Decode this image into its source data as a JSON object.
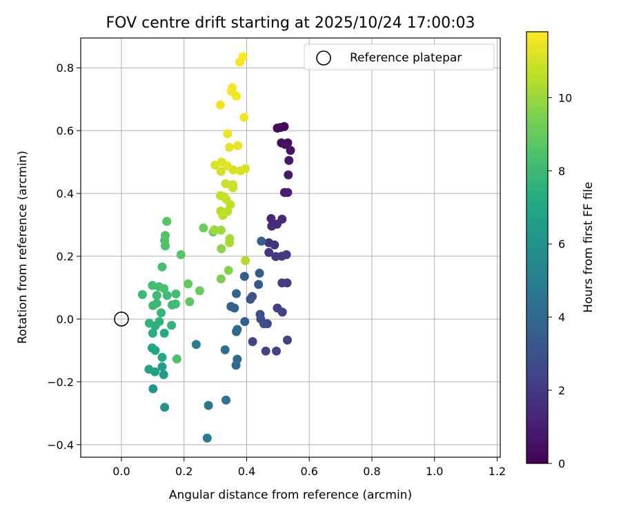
{
  "chart_data": {
    "type": "scatter",
    "title": "FOV centre drift starting at 2025/10/24 17:00:03",
    "xlabel": "Angular distance from reference (arcmin)",
    "ylabel": "Rotation from reference (arcmin)",
    "xlim": [
      -0.13,
      1.21
    ],
    "ylim": [
      -0.44,
      0.895
    ],
    "xticks": [
      0.0,
      0.2,
      0.4,
      0.6,
      0.8,
      1.0,
      1.2
    ],
    "xtick_labels": [
      "0.0",
      "0.2",
      "0.4",
      "0.6",
      "0.8",
      "1.0",
      "1.2"
    ],
    "yticks": [
      -0.4,
      -0.2,
      0.0,
      0.2,
      0.4,
      0.6,
      0.8
    ],
    "ytick_labels": [
      "−0.4",
      "−0.2",
      "0.0",
      "0.2",
      "0.4",
      "0.6",
      "0.8"
    ],
    "grid": true,
    "legend": {
      "position": "top-right",
      "entries": [
        "Reference platepar"
      ]
    },
    "reference_point": {
      "x": 0.0,
      "y": 0.0,
      "label": "Reference platepar"
    },
    "colorbar": {
      "label": "Hours from first FF file",
      "range": [
        0,
        11.8
      ],
      "ticks": [
        0,
        2,
        4,
        6,
        8,
        10
      ],
      "tick_labels": [
        "0",
        "2",
        "4",
        "6",
        "8",
        "10"
      ],
      "colormap": "viridis"
    },
    "points": [
      {
        "x": 0.508,
        "y": 0.61,
        "c": 0.1
      },
      {
        "x": 0.52,
        "y": 0.613,
        "c": 0.2
      },
      {
        "x": 0.498,
        "y": 0.608,
        "c": 0.3
      },
      {
        "x": 0.511,
        "y": 0.561,
        "c": 0.4
      },
      {
        "x": 0.531,
        "y": 0.561,
        "c": 0.5
      },
      {
        "x": 0.523,
        "y": 0.556,
        "c": 0.55
      },
      {
        "x": 0.54,
        "y": 0.537,
        "c": 0.6
      },
      {
        "x": 0.535,
        "y": 0.505,
        "c": 0.7
      },
      {
        "x": 0.533,
        "y": 0.459,
        "c": 0.8
      },
      {
        "x": 0.521,
        "y": 0.403,
        "c": 0.9
      },
      {
        "x": 0.531,
        "y": 0.403,
        "c": 1.0
      },
      {
        "x": 0.478,
        "y": 0.32,
        "c": 1.2
      },
      {
        "x": 0.513,
        "y": 0.318,
        "c": 1.3
      },
      {
        "x": 0.48,
        "y": 0.296,
        "c": 1.4
      },
      {
        "x": 0.497,
        "y": 0.302,
        "c": 1.5
      },
      {
        "x": 0.471,
        "y": 0.243,
        "c": 1.6
      },
      {
        "x": 0.489,
        "y": 0.236,
        "c": 1.7
      },
      {
        "x": 0.471,
        "y": 0.212,
        "c": 1.8
      },
      {
        "x": 0.493,
        "y": 0.199,
        "c": 1.9
      },
      {
        "x": 0.512,
        "y": 0.2,
        "c": 2.0
      },
      {
        "x": 0.527,
        "y": 0.205,
        "c": 2.0
      },
      {
        "x": 0.513,
        "y": 0.115,
        "c": 2.1
      },
      {
        "x": 0.529,
        "y": 0.115,
        "c": 2.15
      },
      {
        "x": 0.498,
        "y": 0.035,
        "c": 2.2
      },
      {
        "x": 0.514,
        "y": 0.022,
        "c": 2.25
      },
      {
        "x": 0.53,
        "y": -0.067,
        "c": 2.3
      },
      {
        "x": 0.495,
        "y": -0.102,
        "c": 2.35
      },
      {
        "x": 0.461,
        "y": -0.102,
        "c": 2.4
      },
      {
        "x": 0.419,
        "y": -0.072,
        "c": 2.5
      },
      {
        "x": 0.466,
        "y": -0.015,
        "c": 2.6
      },
      {
        "x": 0.455,
        "y": -0.015,
        "c": 2.7
      },
      {
        "x": 0.445,
        "y": 0.0,
        "c": 2.8
      },
      {
        "x": 0.443,
        "y": 0.015,
        "c": 2.9
      },
      {
        "x": 0.418,
        "y": 0.072,
        "c": 3.0
      },
      {
        "x": 0.412,
        "y": 0.063,
        "c": 3.1
      },
      {
        "x": 0.438,
        "y": 0.11,
        "c": 3.2
      },
      {
        "x": 0.441,
        "y": 0.146,
        "c": 3.3
      },
      {
        "x": 0.393,
        "y": 0.136,
        "c": 3.4
      },
      {
        "x": 0.447,
        "y": 0.248,
        "c": 3.45
      },
      {
        "x": 0.394,
        "y": -0.008,
        "c": 3.5
      },
      {
        "x": 0.361,
        "y": 0.035,
        "c": 3.6
      },
      {
        "x": 0.35,
        "y": 0.04,
        "c": 3.7
      },
      {
        "x": 0.367,
        "y": 0.081,
        "c": 3.8
      },
      {
        "x": 0.37,
        "y": -0.033,
        "c": 3.9
      },
      {
        "x": 0.367,
        "y": -0.04,
        "c": 4.0
      },
      {
        "x": 0.37,
        "y": -0.128,
        "c": 4.1
      },
      {
        "x": 0.366,
        "y": -0.147,
        "c": 4.2
      },
      {
        "x": 0.331,
        "y": -0.098,
        "c": 4.4
      },
      {
        "x": 0.334,
        "y": -0.258,
        "c": 4.5
      },
      {
        "x": 0.278,
        "y": -0.275,
        "c": 4.7
      },
      {
        "x": 0.274,
        "y": -0.379,
        "c": 4.8
      },
      {
        "x": 0.239,
        "y": -0.081,
        "c": 5.0
      },
      {
        "x": 0.138,
        "y": -0.281,
        "c": 6.0
      },
      {
        "x": 0.101,
        "y": -0.222,
        "c": 6.2
      },
      {
        "x": 0.135,
        "y": -0.177,
        "c": 6.4
      },
      {
        "x": 0.13,
        "y": -0.152,
        "c": 6.5
      },
      {
        "x": 0.107,
        "y": -0.168,
        "c": 6.6
      },
      {
        "x": 0.088,
        "y": -0.16,
        "c": 6.8
      },
      {
        "x": 0.098,
        "y": -0.092,
        "c": 6.9
      },
      {
        "x": 0.108,
        "y": -0.1,
        "c": 7.0
      },
      {
        "x": 0.13,
        "y": -0.122,
        "c": 7.1
      },
      {
        "x": 0.137,
        "y": -0.045,
        "c": 7.2
      },
      {
        "x": 0.1,
        "y": -0.045,
        "c": 7.3
      },
      {
        "x": 0.108,
        "y": -0.022,
        "c": 7.4
      },
      {
        "x": 0.121,
        "y": -0.008,
        "c": 7.5
      },
      {
        "x": 0.089,
        "y": -0.013,
        "c": 7.6
      },
      {
        "x": 0.16,
        "y": -0.02,
        "c": 7.7
      },
      {
        "x": 0.127,
        "y": 0.02,
        "c": 7.75
      },
      {
        "x": 0.101,
        "y": 0.043,
        "c": 7.8
      },
      {
        "x": 0.113,
        "y": 0.05,
        "c": 7.85
      },
      {
        "x": 0.067,
        "y": 0.078,
        "c": 7.9
      },
      {
        "x": 0.113,
        "y": 0.075,
        "c": 7.95
      },
      {
        "x": 0.162,
        "y": 0.045,
        "c": 8.0
      },
      {
        "x": 0.173,
        "y": 0.048,
        "c": 8.05
      },
      {
        "x": 0.146,
        "y": 0.075,
        "c": 8.1
      },
      {
        "x": 0.174,
        "y": 0.08,
        "c": 8.15
      },
      {
        "x": 0.099,
        "y": 0.107,
        "c": 8.2
      },
      {
        "x": 0.12,
        "y": 0.103,
        "c": 8.25
      },
      {
        "x": 0.136,
        "y": 0.097,
        "c": 8.3
      },
      {
        "x": 0.13,
        "y": 0.166,
        "c": 8.35
      },
      {
        "x": 0.177,
        "y": -0.127,
        "c": 8.4
      },
      {
        "x": 0.14,
        "y": 0.233,
        "c": 8.45
      },
      {
        "x": 0.138,
        "y": 0.25,
        "c": 8.5
      },
      {
        "x": 0.14,
        "y": 0.266,
        "c": 8.55
      },
      {
        "x": 0.145,
        "y": 0.311,
        "c": 8.6
      },
      {
        "x": 0.19,
        "y": 0.205,
        "c": 8.7
      },
      {
        "x": 0.218,
        "y": 0.055,
        "c": 8.8
      },
      {
        "x": 0.213,
        "y": 0.112,
        "c": 8.9
      },
      {
        "x": 0.25,
        "y": 0.09,
        "c": 9.0
      },
      {
        "x": 0.262,
        "y": 0.29,
        "c": 9.1
      },
      {
        "x": 0.293,
        "y": 0.277,
        "c": 9.2
      },
      {
        "x": 0.318,
        "y": 0.128,
        "c": 9.4
      },
      {
        "x": 0.342,
        "y": 0.155,
        "c": 9.6
      },
      {
        "x": 0.319,
        "y": 0.224,
        "c": 9.8
      },
      {
        "x": 0.318,
        "y": 0.283,
        "c": 10.0
      },
      {
        "x": 0.297,
        "y": 0.284,
        "c": 10.1
      },
      {
        "x": 0.345,
        "y": 0.243,
        "c": 10.2
      },
      {
        "x": 0.346,
        "y": 0.256,
        "c": 10.3
      },
      {
        "x": 0.396,
        "y": 0.186,
        "c": 10.4
      },
      {
        "x": 0.317,
        "y": 0.344,
        "c": 10.5
      },
      {
        "x": 0.339,
        "y": 0.343,
        "c": 10.55
      },
      {
        "x": 0.324,
        "y": 0.33,
        "c": 10.6
      },
      {
        "x": 0.348,
        "y": 0.364,
        "c": 10.65
      },
      {
        "x": 0.316,
        "y": 0.393,
        "c": 10.7
      },
      {
        "x": 0.335,
        "y": 0.381,
        "c": 10.75
      },
      {
        "x": 0.327,
        "y": 0.39,
        "c": 10.8
      },
      {
        "x": 0.333,
        "y": 0.431,
        "c": 10.85
      },
      {
        "x": 0.356,
        "y": 0.418,
        "c": 10.9
      },
      {
        "x": 0.356,
        "y": 0.428,
        "c": 10.95
      },
      {
        "x": 0.318,
        "y": 0.47,
        "c": 11.0
      },
      {
        "x": 0.357,
        "y": 0.475,
        "c": 11.05
      },
      {
        "x": 0.38,
        "y": 0.472,
        "c": 11.1
      },
      {
        "x": 0.396,
        "y": 0.479,
        "c": 11.15
      },
      {
        "x": 0.299,
        "y": 0.49,
        "c": 11.2
      },
      {
        "x": 0.32,
        "y": 0.5,
        "c": 11.25
      },
      {
        "x": 0.338,
        "y": 0.488,
        "c": 11.3
      },
      {
        "x": 0.345,
        "y": 0.547,
        "c": 11.35
      },
      {
        "x": 0.372,
        "y": 0.552,
        "c": 11.4
      },
      {
        "x": 0.339,
        "y": 0.59,
        "c": 11.45
      },
      {
        "x": 0.392,
        "y": 0.642,
        "c": 11.5
      },
      {
        "x": 0.316,
        "y": 0.682,
        "c": 11.55
      },
      {
        "x": 0.351,
        "y": 0.725,
        "c": 11.6
      },
      {
        "x": 0.354,
        "y": 0.737,
        "c": 11.62
      },
      {
        "x": 0.367,
        "y": 0.71,
        "c": 11.65
      },
      {
        "x": 0.378,
        "y": 0.818,
        "c": 11.7
      },
      {
        "x": 0.388,
        "y": 0.836,
        "c": 11.75
      }
    ]
  }
}
